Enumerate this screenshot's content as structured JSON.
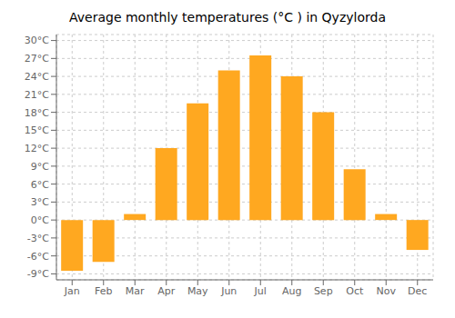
{
  "chart_data": {
    "type": "bar",
    "title": "Average monthly temperatures (°C ) in Qyzylorda",
    "categories": [
      "Jan",
      "Feb",
      "Mar",
      "Apr",
      "May",
      "Jun",
      "Jul",
      "Aug",
      "Sep",
      "Oct",
      "Nov",
      "Dec"
    ],
    "values": [
      -8.5,
      -7.0,
      1.0,
      12.0,
      19.5,
      25.0,
      27.5,
      24.0,
      18.0,
      8.5,
      1.0,
      -5.0
    ],
    "color": "#FFA820",
    "ylim": [
      -10,
      31
    ],
    "yticks": [
      {
        "value": -9,
        "label": "-9°C"
      },
      {
        "value": -6,
        "label": "-6°C"
      },
      {
        "value": -3,
        "label": "-3°C"
      },
      {
        "value": 0,
        "label": "0°C"
      },
      {
        "value": 3,
        "label": "3°C"
      },
      {
        "value": 6,
        "label": "6°C"
      },
      {
        "value": 9,
        "label": "9°C"
      },
      {
        "value": 12,
        "label": "12°C"
      },
      {
        "value": 15,
        "label": "15°C"
      },
      {
        "value": 18,
        "label": "18°C"
      },
      {
        "value": 21,
        "label": "21°C"
      },
      {
        "value": 24,
        "label": "24°C"
      },
      {
        "value": 27,
        "label": "27°C"
      },
      {
        "value": 30,
        "label": "30°C"
      }
    ],
    "grid": true
  }
}
